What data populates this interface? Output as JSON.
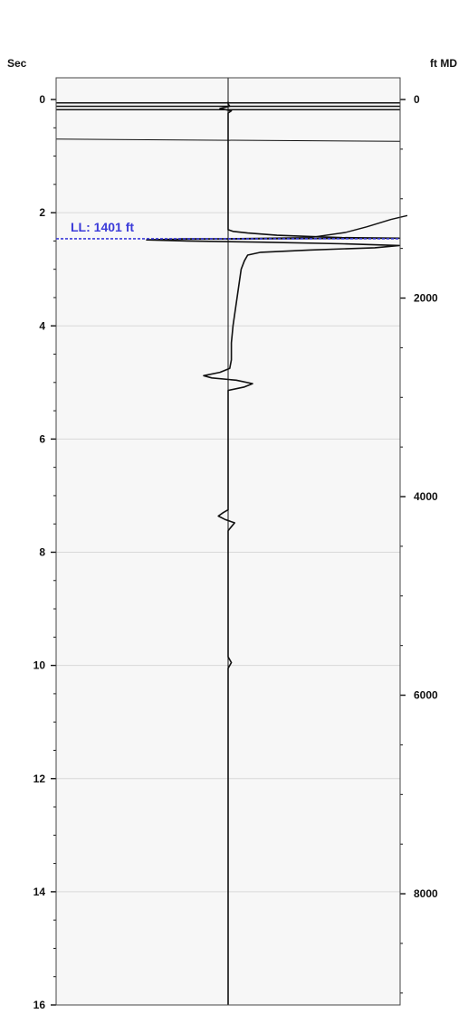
{
  "chart_data": {
    "type": "line",
    "title": "",
    "left_axis": {
      "label": "Sec",
      "ylim": [
        -0.4,
        16
      ],
      "major_ticks": [
        0,
        2,
        4,
        6,
        8,
        10,
        12,
        14,
        16
      ],
      "minor_step": 0.5,
      "grid": true
    },
    "right_axis": {
      "label": "ft MD",
      "major_ticks": [
        0,
        2000,
        4000,
        6000,
        8000
      ],
      "minor_step": 500,
      "ft_per_sec": 570
    },
    "series": [
      {
        "points": [
          [
            0.0,
            0.04
          ],
          [
            0.0,
            0.08
          ],
          [
            0.01,
            0.12
          ],
          [
            -0.05,
            0.16
          ],
          [
            0.02,
            0.2
          ],
          [
            0.0,
            0.24
          ],
          [
            0.0,
            2.3
          ],
          [
            0.03,
            2.33
          ],
          [
            0.12,
            2.36
          ],
          [
            0.3,
            2.4
          ],
          [
            0.5,
            2.42
          ],
          [
            0.7,
            2.44
          ],
          [
            1.05,
            2.45
          ],
          [
            0.25,
            2.46
          ],
          [
            -0.35,
            2.47
          ],
          [
            -0.5,
            2.48
          ],
          [
            -0.25,
            2.5
          ],
          [
            0.2,
            2.52
          ],
          [
            0.7,
            2.55
          ],
          [
            1.05,
            2.58
          ],
          [
            0.9,
            2.62
          ],
          [
            0.5,
            2.66
          ],
          [
            0.2,
            2.7
          ],
          [
            0.12,
            2.75
          ],
          [
            0.1,
            2.85
          ],
          [
            0.08,
            3.0
          ],
          [
            0.07,
            3.2
          ],
          [
            0.06,
            3.4
          ],
          [
            0.05,
            3.6
          ],
          [
            0.04,
            3.8
          ],
          [
            0.03,
            4.0
          ],
          [
            0.02,
            4.3
          ],
          [
            0.02,
            4.6
          ],
          [
            0.01,
            4.75
          ],
          [
            -0.05,
            4.82
          ],
          [
            -0.15,
            4.88
          ],
          [
            -0.1,
            4.92
          ],
          [
            0.05,
            4.96
          ],
          [
            0.15,
            5.02
          ],
          [
            0.1,
            5.08
          ],
          [
            0.0,
            5.14
          ],
          [
            0.0,
            7.25
          ],
          [
            -0.03,
            7.3
          ],
          [
            -0.06,
            7.36
          ],
          [
            -0.02,
            7.42
          ],
          [
            0.04,
            7.48
          ],
          [
            0.02,
            7.55
          ],
          [
            0.0,
            7.62
          ],
          [
            0.0,
            9.85
          ],
          [
            0.02,
            9.95
          ],
          [
            0.0,
            10.05
          ],
          [
            0.0,
            16.0
          ]
        ],
        "upper_branch": [
          [
            -0.3,
            2.46
          ],
          [
            0.0,
            2.46
          ],
          [
            0.5,
            2.44
          ],
          [
            0.72,
            2.35
          ],
          [
            0.85,
            2.25
          ],
          [
            1.0,
            2.12
          ],
          [
            1.1,
            2.05
          ]
        ]
      }
    ],
    "horizontal_lines_sec": [
      0.06,
      0.12,
      0.18
    ],
    "sloped_line_sec": [
      0.7,
      0.74
    ],
    "marker": {
      "label": "LL: 1401 ft",
      "sec": 2.46,
      "color": "#3b3bd9"
    },
    "colors": {
      "trace": "#111111",
      "grid": "#d8d8d8",
      "plot_bg": "#f7f7f7",
      "frame": "#444444"
    }
  }
}
